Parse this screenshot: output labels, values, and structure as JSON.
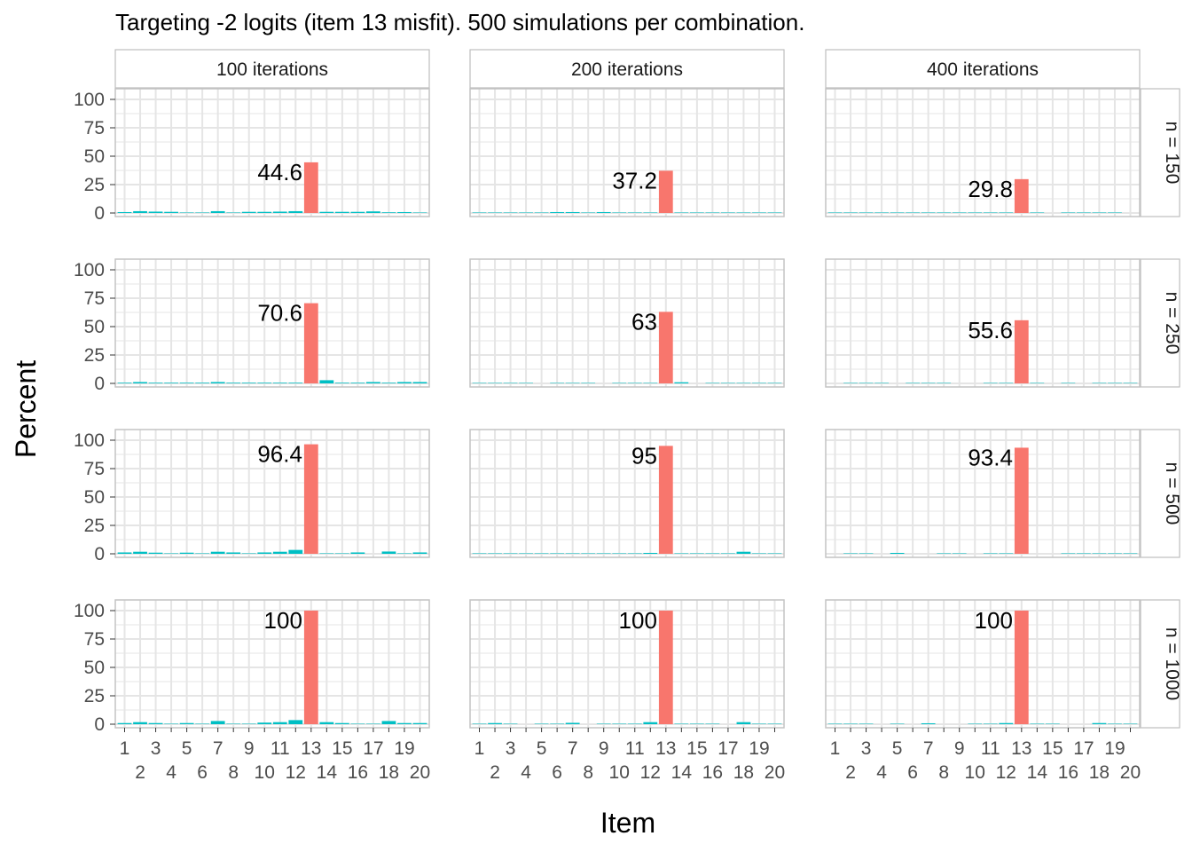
{
  "chart_data": {
    "type": "bar",
    "title": "Targeting -2 logits (item 13 misfit). 500 simulations per combination.",
    "xlabel": "Item",
    "ylabel": "Percent",
    "ylim": [
      0,
      100
    ],
    "y_ticks": [
      0,
      25,
      50,
      75,
      100
    ],
    "x_ticks_row1": [
      "1",
      "3",
      "5",
      "7",
      "9",
      "11",
      "13",
      "15",
      "17",
      "19"
    ],
    "x_ticks_row2": [
      "2",
      "4",
      "6",
      "8",
      "10",
      "12",
      "14",
      "16",
      "18",
      "20"
    ],
    "categories": [
      "1",
      "2",
      "3",
      "4",
      "5",
      "6",
      "7",
      "8",
      "9",
      "10",
      "11",
      "12",
      "13",
      "14",
      "15",
      "16",
      "17",
      "18",
      "19",
      "20"
    ],
    "highlight_item": "13",
    "colors": {
      "highlight": "#F8766D",
      "other": "#00BFC4",
      "grid": "#e5e5e5",
      "panel_border": "#c4c4c4",
      "strip_border": "#bfbfbf"
    },
    "facet_cols": [
      "100 iterations",
      "200 iterations",
      "400 iterations"
    ],
    "facet_rows": [
      "n = 150",
      "n = 250",
      "n = 500",
      "n = 1000"
    ],
    "grid": true,
    "panels": [
      [
        {
          "values": [
            0.8,
            1.6,
            1.2,
            1.0,
            0.4,
            0.4,
            1.6,
            0.4,
            1.0,
            1.0,
            1.2,
            1.6,
            44.6,
            1.0,
            1.0,
            1.0,
            1.4,
            0.6,
            0.8,
            0.4
          ],
          "label": "44.6"
        },
        {
          "values": [
            0.4,
            0.4,
            0.4,
            0.4,
            0.4,
            0.8,
            0.8,
            0.4,
            0.8,
            0.4,
            0.4,
            0.4,
            37.2,
            0.4,
            0.4,
            0.4,
            0.4,
            0.4,
            0.4,
            0.4
          ],
          "label": "37.2"
        },
        {
          "values": [
            0.4,
            0.4,
            0.4,
            0.4,
            0.4,
            0.4,
            0.4,
            0.4,
            0.4,
            0.4,
            0.4,
            0.4,
            29.8,
            0.4,
            0,
            0.4,
            0.4,
            0.4,
            0.4,
            0
          ],
          "label": "29.8"
        }
      ],
      [
        {
          "values": [
            0.6,
            1.2,
            0.6,
            0.6,
            0.6,
            0.6,
            1.2,
            0.6,
            0.6,
            0.6,
            0.6,
            0.6,
            70.6,
            2.8,
            0.6,
            0.6,
            1.2,
            0.6,
            1.2,
            1.2
          ],
          "label": "70.6"
        },
        {
          "values": [
            0.4,
            0.4,
            0.4,
            0.4,
            0,
            0.4,
            0.4,
            0.4,
            0,
            0.4,
            0.4,
            0.4,
            63,
            1.0,
            0,
            0.4,
            0.4,
            0.4,
            0.4,
            0.4
          ],
          "label": "63"
        },
        {
          "values": [
            0,
            0.4,
            0.4,
            0.4,
            0,
            0.4,
            0.4,
            0.4,
            0,
            0,
            0.4,
            0.4,
            55.6,
            0.4,
            0,
            0.4,
            0,
            0.4,
            0.4,
            0.4
          ],
          "label": "55.6"
        }
      ],
      [
        {
          "values": [
            1.2,
            1.8,
            1.0,
            0.4,
            1.0,
            0.4,
            1.8,
            1.2,
            0.4,
            1.2,
            1.8,
            3.4,
            96.4,
            0.4,
            0.4,
            1.2,
            0,
            2.0,
            0.4,
            1.2
          ],
          "label": "96.4"
        },
        {
          "values": [
            0.4,
            0.4,
            0.4,
            0.4,
            0.4,
            0.4,
            0.4,
            0.4,
            0.4,
            0.4,
            0.4,
            0.8,
            95,
            0.4,
            0.4,
            0.4,
            0.4,
            1.8,
            0.4,
            0.4
          ],
          "label": "95"
        },
        {
          "values": [
            0,
            0.4,
            0.4,
            0,
            0.8,
            0,
            0,
            0.4,
            0.4,
            0,
            0.4,
            0.4,
            93.4,
            0,
            0,
            0.4,
            0.4,
            0.4,
            0.4,
            0.4
          ],
          "label": "93.4"
        }
      ],
      [
        {
          "values": [
            1.0,
            1.8,
            1.0,
            0.4,
            1.0,
            0.4,
            2.8,
            0.4,
            0.4,
            1.4,
            1.8,
            3.6,
            100,
            1.8,
            1.0,
            0.4,
            0.4,
            2.8,
            1.0,
            1.0
          ],
          "label": "100"
        },
        {
          "values": [
            0.4,
            1.0,
            0.4,
            0,
            0.4,
            0.4,
            1.2,
            0,
            0.4,
            0.4,
            0.4,
            1.8,
            100,
            0.4,
            0.4,
            0.4,
            0,
            1.8,
            0.4,
            0.4
          ],
          "label": "100"
        },
        {
          "values": [
            0.4,
            0.4,
            0.4,
            0,
            0.4,
            0,
            0.8,
            0,
            0,
            0.4,
            0.4,
            1.0,
            100,
            0.4,
            0.4,
            0,
            0,
            1.0,
            0.4,
            0.4
          ],
          "label": "100"
        }
      ]
    ]
  }
}
